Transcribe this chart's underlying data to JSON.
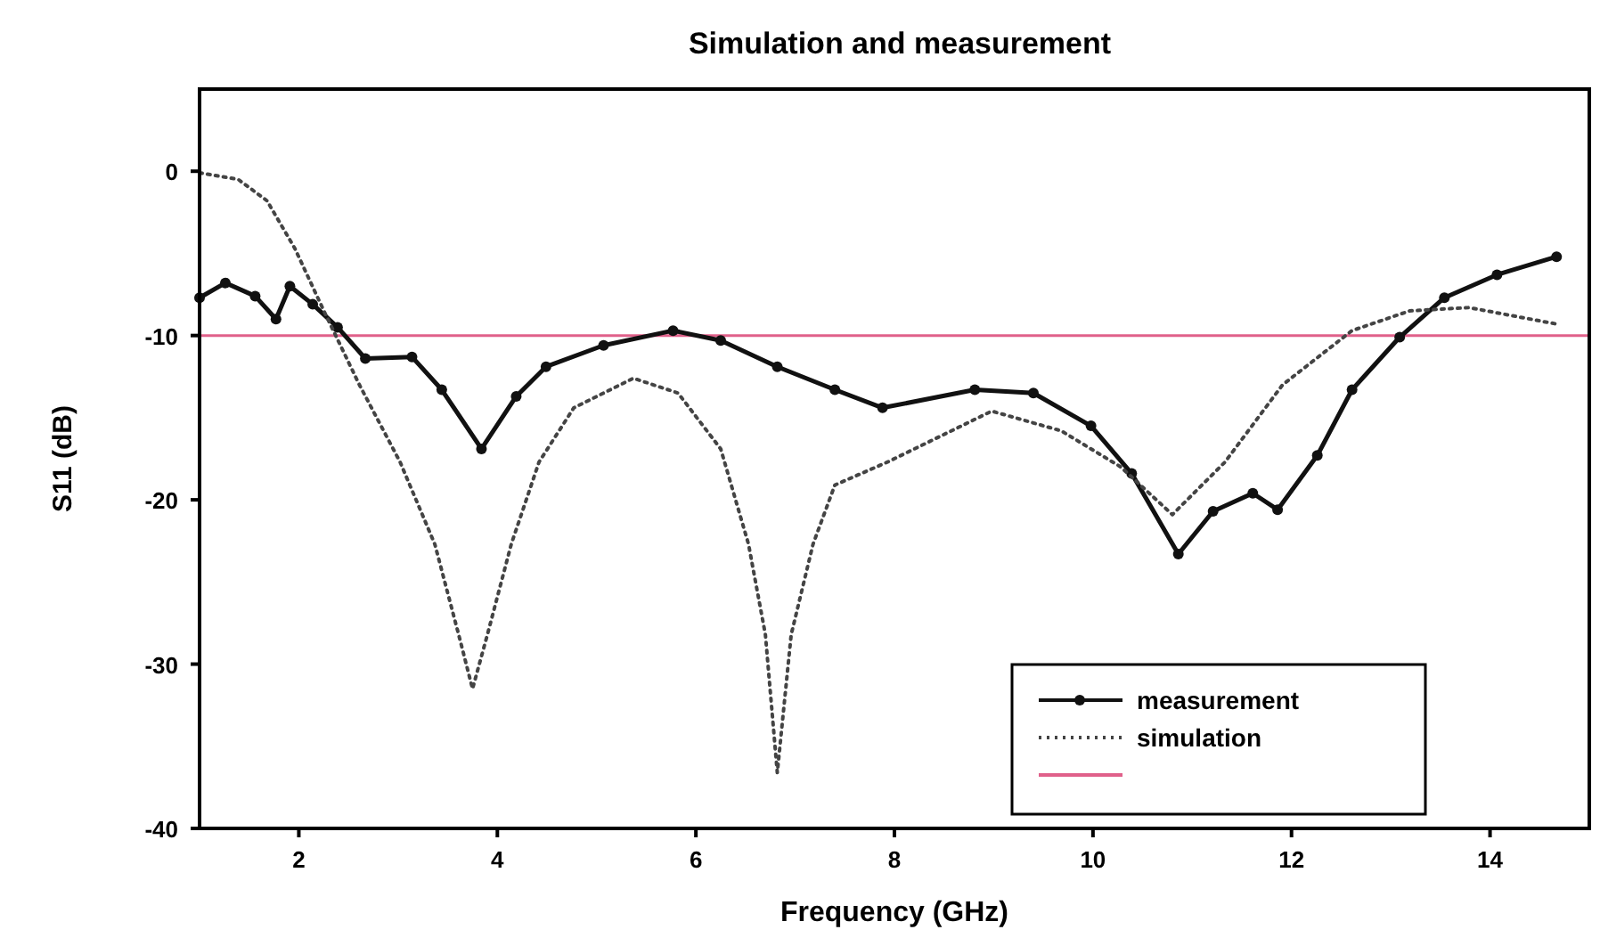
{
  "chart_data": {
    "type": "line",
    "title": "Simulation and measurement",
    "xlabel": "Frequency (GHz)",
    "ylabel": "S11 (dB)",
    "xlim": [
      1,
      15
    ],
    "ylim": [
      -40,
      5
    ],
    "xticks": [
      2,
      4,
      6,
      8,
      10,
      12,
      14
    ],
    "yticks": [
      0,
      -10,
      -20,
      -30,
      -40
    ],
    "grid": false,
    "legend": "bottom right",
    "series": [
      {
        "name": "measurement",
        "color": "#111111",
        "marker": "circle",
        "line_style": "solid",
        "x": [
          1,
          1.26,
          1.56,
          1.77,
          1.91,
          2.14,
          2.39,
          2.67,
          3.14,
          3.44,
          3.84,
          4.19,
          4.49,
          5.07,
          5.77,
          6.25,
          6.82,
          7.4,
          7.88,
          8.81,
          9.4,
          9.98,
          10.39,
          10.86,
          11.21,
          11.61,
          11.86,
          12.26,
          12.61,
          13.09,
          13.54,
          14.07,
          14.67
        ],
        "values": [
          -7.7,
          -6.8,
          -7.6,
          -9,
          -7,
          -8.1,
          -9.5,
          -11.4,
          -11.3,
          -13.3,
          -16.9,
          -13.7,
          -11.9,
          -10.6,
          -9.7,
          -10.3,
          -11.9,
          -13.3,
          -14.4,
          -13.3,
          -13.5,
          -15.5,
          -18.4,
          -23.3,
          -20.7,
          -19.6,
          -20.6,
          -17.3,
          -13.3,
          -10.1,
          -7.7,
          -6.3,
          -5.2
        ]
      },
      {
        "name": "simulation",
        "color": "#444444",
        "marker": "none",
        "line_style": "dotted",
        "x": [
          1,
          1.39,
          1.68,
          1.96,
          2.26,
          2.61,
          3.02,
          3.37,
          3.61,
          3.75,
          3.9,
          4.14,
          4.42,
          4.77,
          5.37,
          5.82,
          6.25,
          6.53,
          6.7,
          6.82,
          6.96,
          7.18,
          7.4,
          7.93,
          8.98,
          9.68,
          10.28,
          10.8,
          11.33,
          11.91,
          12.61,
          13.19,
          13.79,
          14.67
        ],
        "values": [
          -0.1,
          -0.5,
          -1.8,
          -4.7,
          -8.6,
          -13,
          -17.7,
          -22.7,
          -28.2,
          -31.5,
          -28.2,
          -22.7,
          -17.7,
          -14.4,
          -12.6,
          -13.5,
          -16.9,
          -22.7,
          -28.2,
          -36.6,
          -28.2,
          -22.7,
          -19.1,
          -17.7,
          -14.6,
          -15.8,
          -18,
          -20.9,
          -17.7,
          -13,
          -9.7,
          -8.5,
          -8.3,
          -9.3
        ]
      }
    ],
    "ref_lines": [
      {
        "axis": "y",
        "value": -10,
        "label": null,
        "color": "#e0608a",
        "line_style": "solid"
      }
    ]
  }
}
